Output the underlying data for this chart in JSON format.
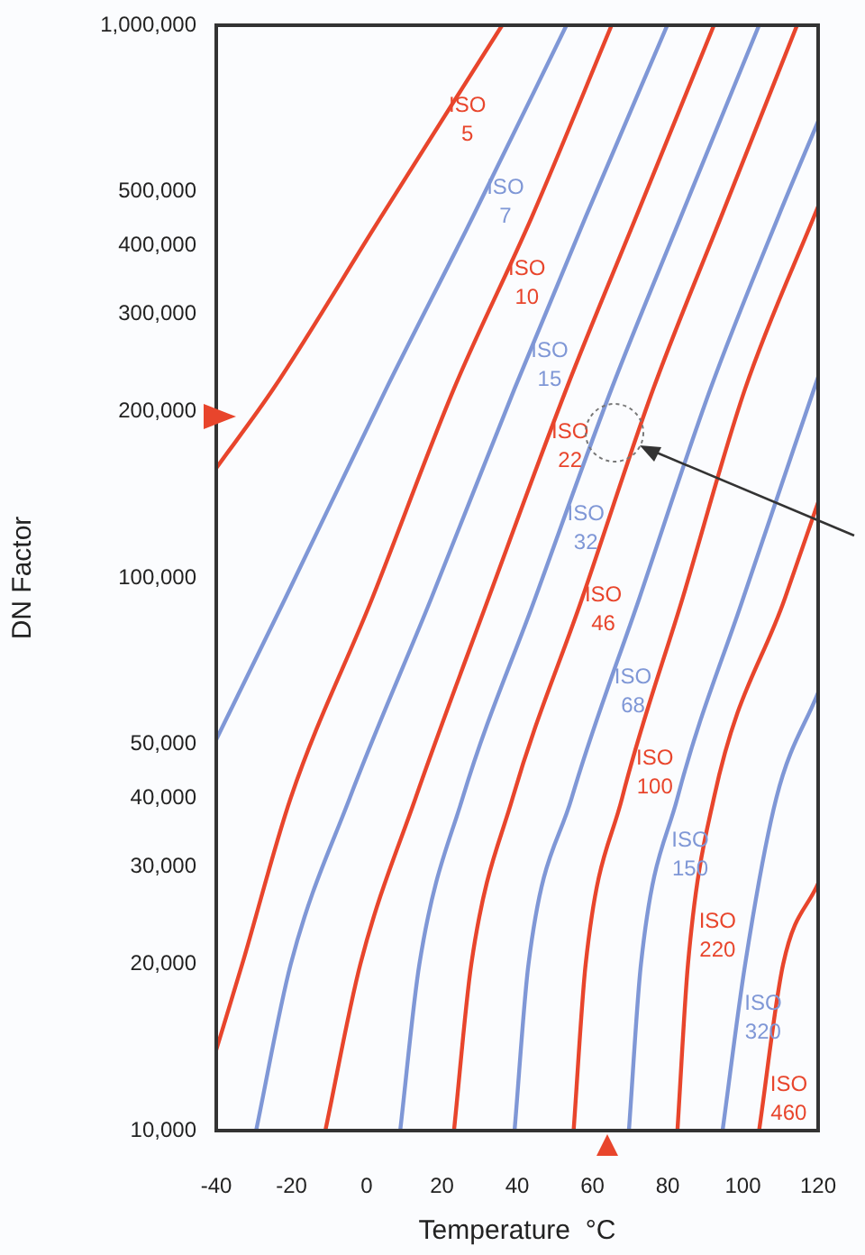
{
  "chart_data": {
    "type": "line",
    "xlabel": "Temperature  °C",
    "ylabel": "DN Factor",
    "log": "y",
    "marker": "none",
    "line_style": "solid",
    "xlim": [
      -40,
      120
    ],
    "xticks": [
      -40,
      -20,
      0,
      20,
      40,
      60,
      80,
      100,
      120
    ],
    "ylim": [
      10000,
      1000000
    ],
    "yticks": [
      {
        "value": 10000,
        "label": "10,000"
      },
      {
        "value": 20000,
        "label": "20,000"
      },
      {
        "value": 30000,
        "label": "30,000"
      },
      {
        "value": 40000,
        "label": "40,000"
      },
      {
        "value": 50000,
        "label": "50,000"
      },
      {
        "value": 100000,
        "label": "100,000"
      },
      {
        "value": 200000,
        "label": "200,000"
      },
      {
        "value": 300000,
        "label": "300,000"
      },
      {
        "value": 400000,
        "label": "400,000"
      },
      {
        "value": 500000,
        "label": "500,000"
      },
      {
        "value": 1000000,
        "label": "1,000,000"
      }
    ],
    "grid": false,
    "series": [
      {
        "name": "ISO 5",
        "color": "#e8452c",
        "x": [
          -40,
          -24.8,
          3.8,
          36
        ],
        "values": [
          158000,
          220000,
          450000,
          1000000
        ]
      },
      {
        "name": "ISO 7",
        "color": "#7f97d6",
        "x": [
          -40,
          -21.6,
          5.2,
          28.2,
          53.1
        ],
        "values": [
          51000,
          92000,
          220000,
          450000,
          1000000
        ]
      },
      {
        "name": "ISO 10",
        "color": "#e8452c",
        "x": [
          -40,
          -33.1,
          -20.2,
          1.5,
          23.2,
          43.9,
          65.1
        ],
        "values": [
          14000,
          20000,
          40000,
          92000,
          220000,
          450000,
          1000000
        ]
      },
      {
        "name": "ISO 15",
        "color": "#7f97d6",
        "x": [
          -29.4,
          -20.2,
          -4.5,
          17.2,
          39.3,
          58.2,
          79.9
        ],
        "values": [
          10000,
          20000,
          40000,
          92000,
          220000,
          450000,
          1000000
        ]
      },
      {
        "name": "ISO 22",
        "color": "#e8452c",
        "x": [
          -11,
          -1.7,
          13,
          32.4,
          53.1,
          71.6,
          92.3
        ],
        "values": [
          10000,
          20000,
          40000,
          92000,
          220000,
          450000,
          1000000
        ]
      },
      {
        "name": "ISO 32",
        "color": "#7f97d6",
        "x": [
          8.9,
          14,
          25.5,
          44.8,
          65.1,
          83.5,
          104.3
        ],
        "values": [
          10000,
          20000,
          40000,
          92000,
          220000,
          450000,
          1000000
        ]
      },
      {
        "name": "ISO 46",
        "color": "#e8452c",
        "x": [
          23.2,
          27.8,
          38.8,
          57.3,
          76.2,
          94.2,
          114.4
        ],
        "values": [
          10000,
          20000,
          40000,
          92000,
          220000,
          450000,
          1000000
        ]
      },
      {
        "name": "ISO 68",
        "color": "#7f97d6",
        "x": [
          39.3,
          43,
          54.5,
          72.5,
          91.4,
          109.4,
          120
        ],
        "values": [
          10000,
          20000,
          40000,
          92000,
          220000,
          450000,
          670000
        ]
      },
      {
        "name": "ISO 100",
        "color": "#e8452c",
        "x": [
          55,
          58.2,
          67.9,
          84,
          100.6,
          120
        ],
        "values": [
          10000,
          20000,
          40000,
          92000,
          220000,
          470000
        ]
      },
      {
        "name": "ISO 150",
        "color": "#7f97d6",
        "x": [
          69.7,
          72.9,
          82.6,
          100.1,
          120
        ],
        "values": [
          10000,
          20000,
          40000,
          92000,
          231000
        ]
      },
      {
        "name": "ISO 220",
        "color": "#e8452c",
        "x": [
          82.6,
          85.4,
          92.3,
          111.2,
          120
        ],
        "values": [
          10000,
          20000,
          40000,
          92000,
          137000
        ]
      },
      {
        "name": "ISO 320",
        "color": "#7f97d6",
        "x": [
          94.6,
          100.6,
          108.9,
          120
        ],
        "values": [
          10000,
          20000,
          40000,
          62000
        ]
      },
      {
        "name": "ISO 460",
        "color": "#e8452c",
        "x": [
          104.3,
          110.7,
          120
        ],
        "values": [
          10000,
          20000,
          28000
        ]
      }
    ]
  }
}
